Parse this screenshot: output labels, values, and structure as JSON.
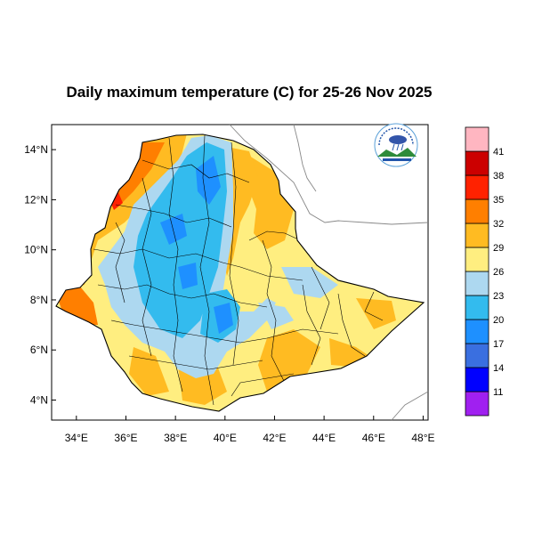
{
  "title": "Daily maximum temperature (C) for 25-26 Nov 2025",
  "map": {
    "lon_range": [
      33,
      48.2
    ],
    "lat_range": [
      3.2,
      15
    ],
    "x_ticks": [
      "34°E",
      "36°E",
      "38°E",
      "40°E",
      "42°E",
      "44°E",
      "46°E",
      "48°E"
    ],
    "y_ticks": [
      "4°N",
      "6°N",
      "8°N",
      "10°N",
      "12°N",
      "14°N"
    ],
    "logo_icon": "ethiopian-meteorology-institute-logo"
  },
  "colorbar": {
    "labels": [
      "11",
      "14",
      "17",
      "20",
      "23",
      "26",
      "29",
      "32",
      "35",
      "38",
      "41"
    ],
    "colors": [
      "#a020f0",
      "#0000ff",
      "#3a6fe0",
      "#1e90ff",
      "#33bbee",
      "#add8f0",
      "#ffee80",
      "#ffbb22",
      "#ff7f00",
      "#ff2200",
      "#cc0000",
      "#ffb6c1"
    ]
  }
}
